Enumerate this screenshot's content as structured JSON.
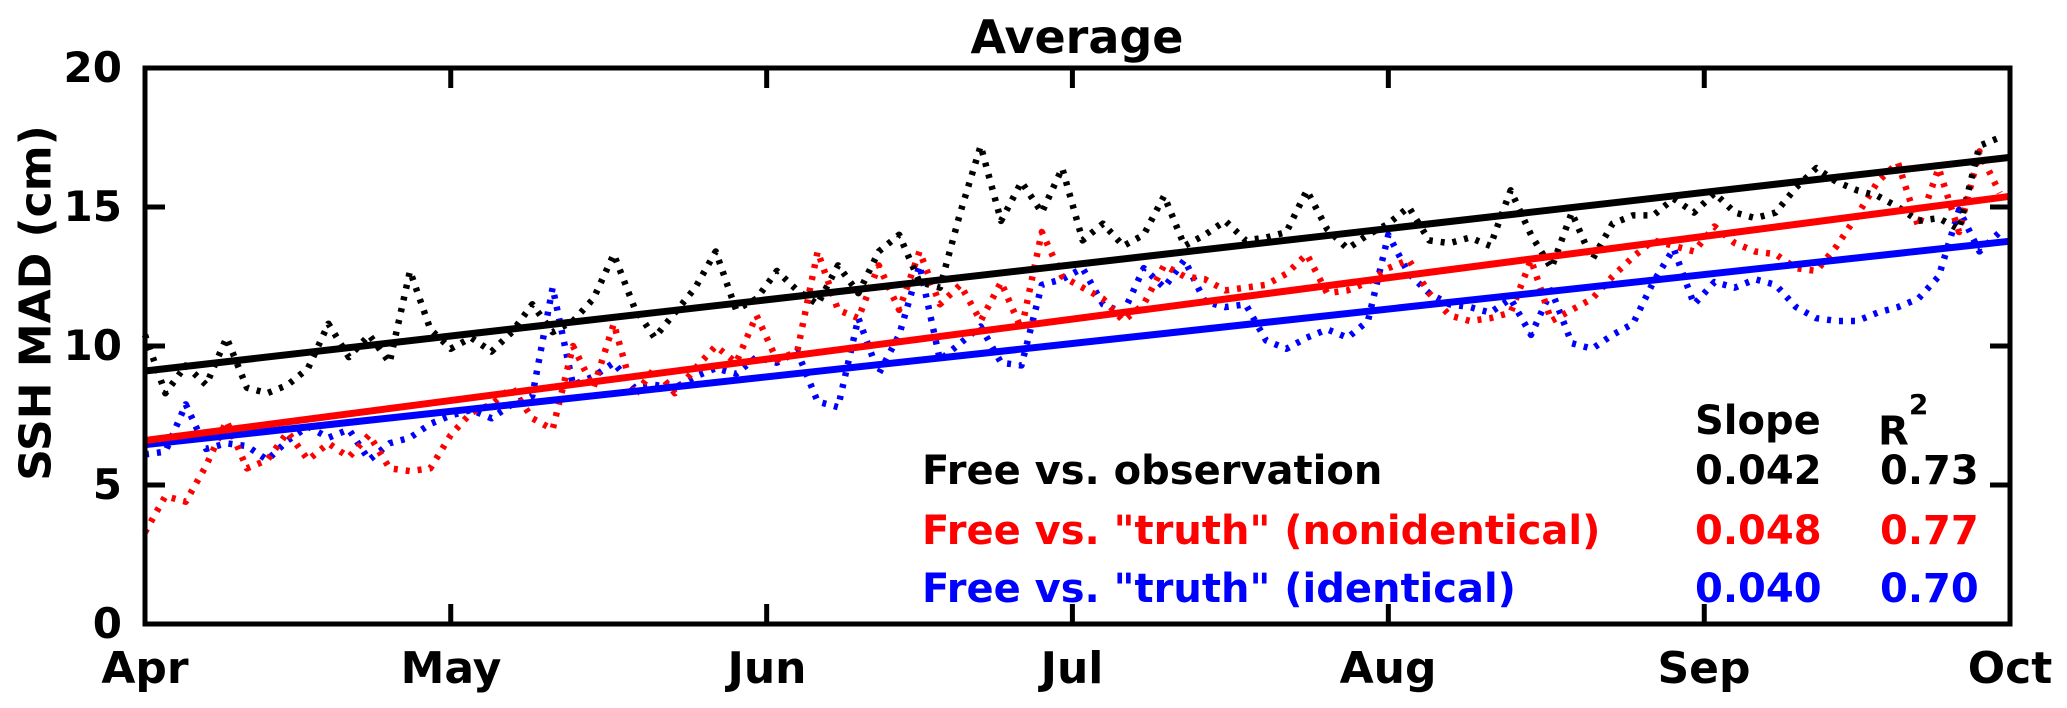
{
  "chart_data": {
    "type": "line",
    "title": "Average",
    "ylabel": "SSH MAD (cm)",
    "ylim": [
      0,
      20
    ],
    "xlim_days": [
      0,
      183
    ],
    "grid": false,
    "frame_color": "#000000",
    "background_color": "#ffffff",
    "y_ticks": [
      0,
      5,
      10,
      15,
      20
    ],
    "x_ticks": [
      {
        "label": "Apr",
        "day": 0
      },
      {
        "label": "May",
        "day": 30
      },
      {
        "label": "Jun",
        "day": 61
      },
      {
        "label": "Jul",
        "day": 91
      },
      {
        "label": "Aug",
        "day": 122
      },
      {
        "label": "Sep",
        "day": 153
      },
      {
        "label": "Oct",
        "day": 183
      }
    ],
    "x_days": [
      0,
      2,
      4,
      6,
      8,
      10,
      12,
      14,
      16,
      18,
      20,
      22,
      24,
      26,
      28,
      30,
      32,
      34,
      36,
      38,
      40,
      42,
      44,
      46,
      48,
      50,
      52,
      54,
      56,
      58,
      60,
      62,
      64,
      66,
      68,
      70,
      72,
      74,
      76,
      78,
      80,
      82,
      84,
      86,
      88,
      90,
      92,
      94,
      96,
      98,
      100,
      102,
      104,
      106,
      108,
      110,
      112,
      114,
      116,
      118,
      120,
      122,
      124,
      126,
      128,
      130,
      132,
      134,
      136,
      138,
      140,
      142,
      144,
      146,
      148,
      150,
      152,
      154,
      156,
      158,
      160,
      162,
      164,
      166,
      168,
      170,
      172,
      174,
      176,
      178,
      180,
      182
    ],
    "series": [
      {
        "name": "Free vs. observation",
        "color": "#000000",
        "line_style": "dotted-with-solid-trend",
        "slope_label": "0.042",
        "r2_label": "0.73",
        "trend": {
          "intercept": 9.1,
          "slope": 0.042
        },
        "values": [
          10.4,
          8.3,
          9.3,
          8.6,
          10.3,
          8.5,
          8.3,
          8.6,
          9.2,
          10.8,
          9.6,
          10.4,
          9.4,
          12.7,
          10.6,
          9.9,
          10.3,
          9.8,
          10.5,
          11.5,
          10.5,
          10.9,
          11.7,
          13.3,
          11.4,
          10.3,
          11.2,
          12.1,
          13.4,
          11.3,
          11.7,
          12.7,
          12.0,
          11.5,
          12.9,
          11.9,
          13.4,
          14.0,
          12.3,
          12.1,
          14.8,
          17.2,
          14.5,
          15.9,
          14.8,
          16.4,
          13.8,
          14.4,
          13.6,
          14.0,
          15.4,
          13.6,
          14.0,
          14.5,
          13.8,
          13.9,
          14.1,
          15.6,
          14.2,
          13.5,
          14.0,
          14.4,
          15.0,
          13.8,
          13.7,
          13.9,
          13.6,
          15.6,
          14.0,
          12.8,
          14.8,
          13.1,
          14.4,
          14.7,
          14.7,
          15.3,
          14.8,
          15.5,
          14.8,
          14.6,
          14.8,
          15.7,
          16.4,
          15.9,
          15.6,
          15.4,
          15.0,
          14.5,
          14.6,
          14.2,
          17.2,
          17.5
        ]
      },
      {
        "name": "Free vs. \"truth\" (nonidentical)",
        "color": "#ff0000",
        "line_style": "dotted-with-solid-trend",
        "slope_label": "0.048",
        "r2_label": "0.77",
        "trend": {
          "intercept": 6.6,
          "slope": 0.048
        },
        "values": [
          3.3,
          4.6,
          4.4,
          5.7,
          7.3,
          5.6,
          5.9,
          6.9,
          5.9,
          6.5,
          6.0,
          6.8,
          5.6,
          5.5,
          5.6,
          6.8,
          7.6,
          7.9,
          8.5,
          7.4,
          7.0,
          10.0,
          8.5,
          10.8,
          8.2,
          9.2,
          8.3,
          9.2,
          10.0,
          9.4,
          11.1,
          9.5,
          9.8,
          13.4,
          11.3,
          11.0,
          12.9,
          11.3,
          13.4,
          11.5,
          12.2,
          10.9,
          12.3,
          10.6,
          14.1,
          12.5,
          12.1,
          11.7,
          10.9,
          11.5,
          12.9,
          12.5,
          12.4,
          12.0,
          12.1,
          12.2,
          12.6,
          13.3,
          11.9,
          12.0,
          12.3,
          12.8,
          13.1,
          11.9,
          11.1,
          10.9,
          11.0,
          11.2,
          13.1,
          10.9,
          11.3,
          11.7,
          12.5,
          13.2,
          13.8,
          13.6,
          13.4,
          14.3,
          13.7,
          13.4,
          13.3,
          12.8,
          12.7,
          13.6,
          14.7,
          15.9,
          16.6,
          14.3,
          16.4,
          14.1,
          17.0,
          15.5
        ]
      },
      {
        "name": "Free vs. \"truth\" (identical)",
        "color": "#0000ff",
        "line_style": "dotted-with-solid-trend",
        "slope_label": "0.040",
        "r2_label": "0.70",
        "trend": {
          "intercept": 6.45,
          "slope": 0.04
        },
        "values": [
          6.1,
          6.2,
          7.9,
          6.3,
          6.5,
          6.4,
          5.9,
          6.6,
          7.1,
          6.7,
          7.0,
          5.9,
          6.5,
          6.7,
          7.2,
          7.5,
          7.7,
          7.4,
          7.9,
          8.2,
          12.1,
          8.6,
          8.9,
          9.4,
          8.5,
          8.6,
          8.5,
          8.9,
          9.2,
          9.0,
          9.6,
          9.4,
          9.8,
          8.0,
          7.8,
          11.0,
          9.0,
          10.4,
          12.9,
          9.5,
          10.1,
          10.7,
          9.4,
          9.3,
          12.2,
          12.4,
          12.8,
          11.5,
          11.2,
          12.8,
          12.1,
          13.1,
          11.6,
          11.4,
          11.5,
          10.2,
          9.9,
          10.3,
          10.6,
          10.3,
          10.9,
          14.0,
          12.6,
          11.9,
          11.5,
          11.4,
          11.2,
          11.7,
          10.4,
          12.0,
          10.1,
          9.9,
          10.4,
          10.8,
          12.3,
          13.5,
          11.5,
          12.3,
          12.1,
          12.4,
          12.2,
          11.4,
          11.0,
          10.9,
          10.9,
          11.2,
          11.4,
          11.7,
          12.5,
          14.9,
          13.4,
          14.1
        ]
      }
    ],
    "legend": {
      "slope_header": "Slope",
      "r2_base": "R",
      "r2_exponent": "2",
      "position": "bottom-right-inside"
    }
  }
}
